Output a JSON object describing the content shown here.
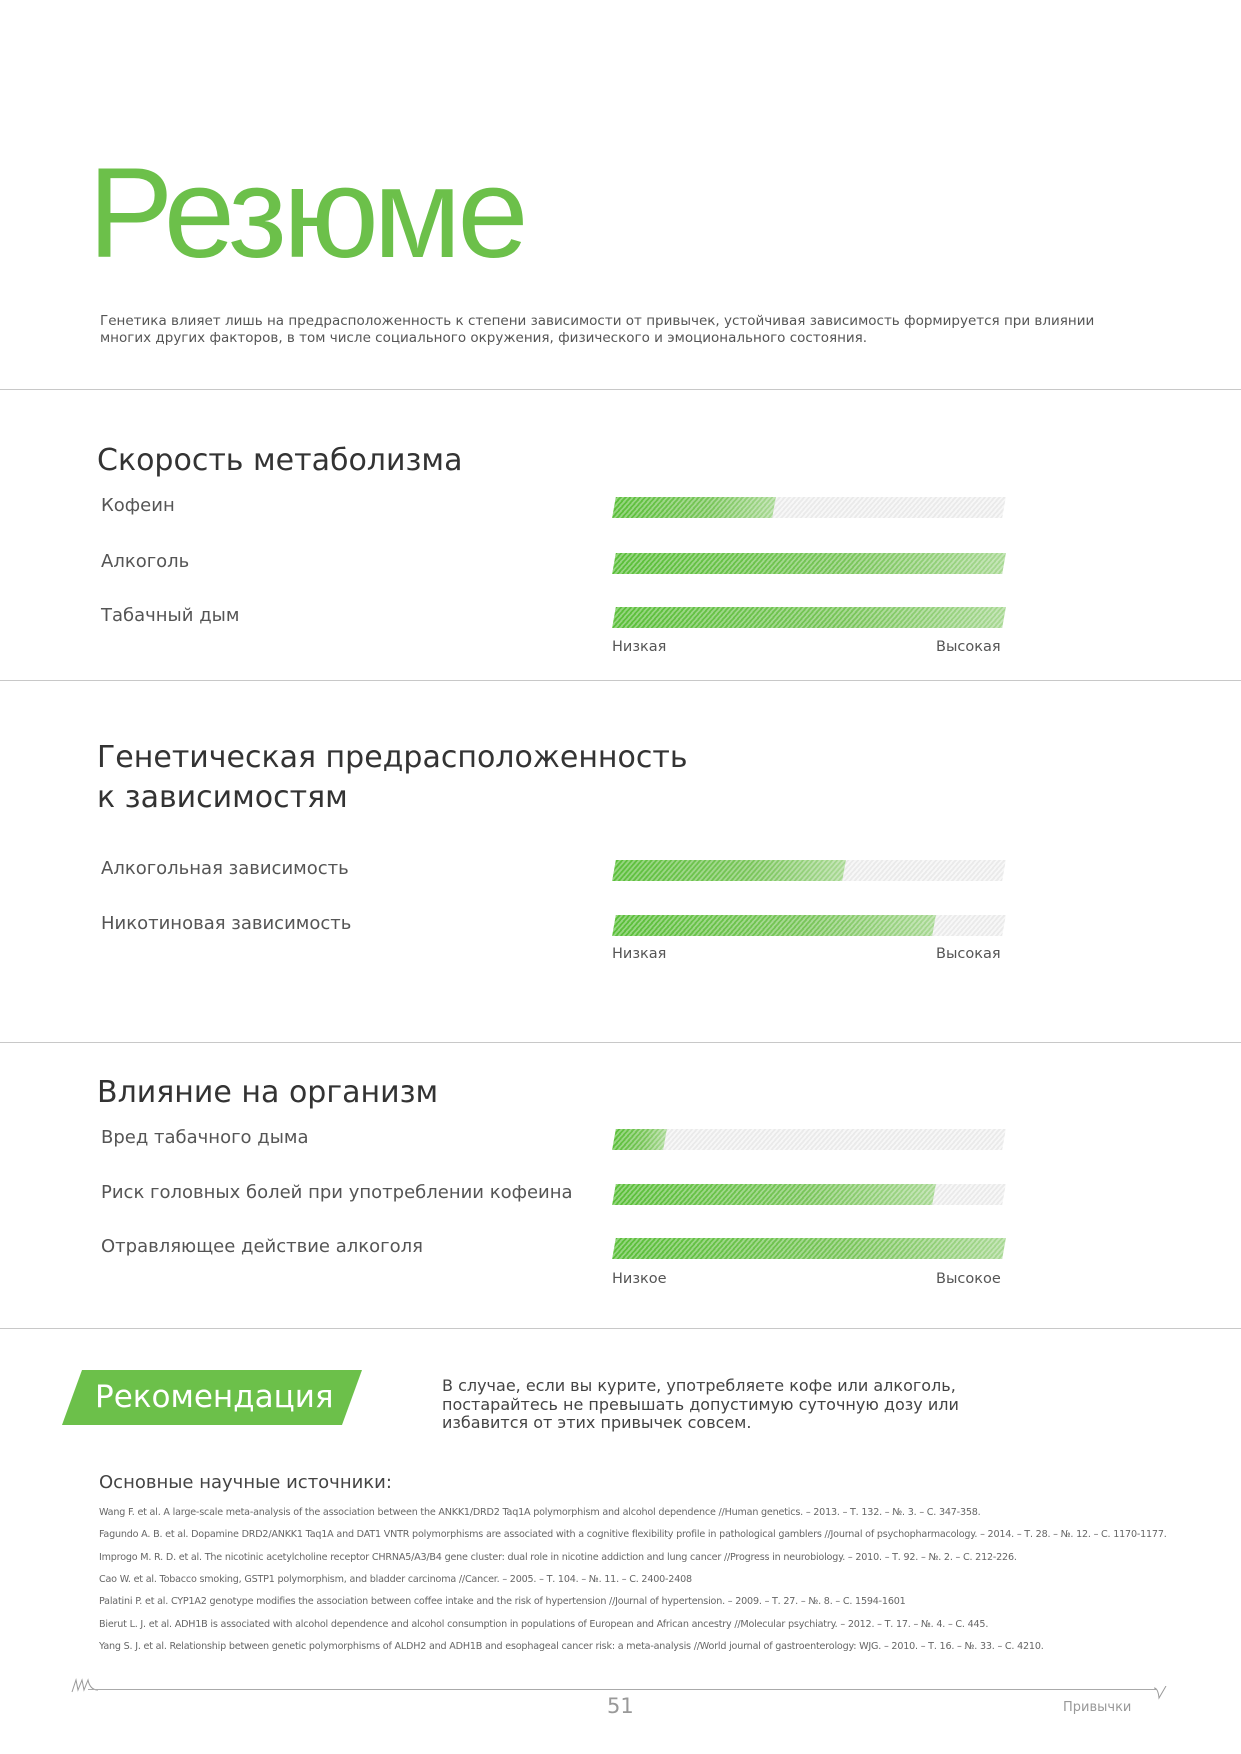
{
  "title": "Резюме",
  "intro": "Генетика влияет лишь на предрасположенность к степени зависимости от привычек, устойчивая зависимость формируется при влиянии многих других факторов, в том числе социального окружения, физического и эмоционального состояния.",
  "colors": {
    "accent": "#6cc04a",
    "track": "#eeeeee"
  },
  "sections": [
    {
      "heading": "Скорость метаболизма",
      "low": "Низкая",
      "high": "Высокая",
      "rows": [
        {
          "label": "Кофеин",
          "level": 0.41
        },
        {
          "label": "Алкоголь",
          "level": 1.0
        },
        {
          "label": "Табачный дым",
          "level": 1.0
        }
      ]
    },
    {
      "heading": "Генетическая предрасположенность",
      "heading2": "к зависимостям",
      "low": "Низкая",
      "high": "Высокая",
      "rows": [
        {
          "label": "Алкогольная зависимость",
          "level": 0.59
        },
        {
          "label": "Никотиновая зависимость",
          "level": 0.82
        }
      ]
    },
    {
      "heading": "Влияние на организм",
      "low": "Низкое",
      "high": "Высокое",
      "rows": [
        {
          "label": "Вред табачного дыма",
          "level": 0.13
        },
        {
          "label": "Риск головных болей при употреблении кофеина",
          "level": 0.82
        },
        {
          "label": "Отравляющее действие алкоголя",
          "level": 1.0
        }
      ]
    }
  ],
  "recommendation": {
    "label": "Рекомендация",
    "text": "В случае, если вы курите, употребляете кофе или алкоголь, постарайтесь не превышать допустимую суточную дозу или избавится от этих привычек совсем."
  },
  "sources": {
    "heading": "Основные научные источники:",
    "items": [
      "Wang F. et al. A large-scale meta-analysis of the association between the ANKK1/DRD2 Taq1A polymorphism and alcohol dependence //Human genetics. – 2013. – Т. 132. – №. 3. – С. 347-358.",
      "Fagundo A. B. et al. Dopamine DRD2/ANKK1 Taq1A and DAT1 VNTR polymorphisms are associated with a cognitive flexibility profile in pathological gamblers //Journal of psychopharmacology. – 2014. – Т. 28. – №. 12. – С. 1170-1177.",
      "Improgo M. R. D. et al. The nicotinic acetylcholine receptor CHRNA5/A3/B4 gene cluster: dual role in nicotine addiction and lung cancer //Progress in neurobiology. – 2010. – Т. 92. – №. 2. – С. 212-226.",
      "Cao W. et al. Tobacco smoking, GSTP1 polymorphism, and bladder carcinoma //Cancer. – 2005. – Т. 104. – №. 11. – С. 2400-2408",
      "Palatini P. et al. CYP1A2 genotype modifies the association between coffee intake and the risk of hypertension //Journal of hypertension. – 2009. – Т. 27. – №. 8. – С. 1594-1601",
      "Bierut L. J. et al. ADH1B is associated with alcohol dependence and alcohol consumption in populations of European and African ancestry //Molecular psychiatry. – 2012. – Т. 17. – №. 4. – С. 445.",
      "Yang S. J. et al. Relationship between genetic polymorphisms of ALDH2 and ADH1B and esophageal cancer risk: a meta-analysis //World journal of gastroenterology: WJG. – 2010. – Т. 16. – №. 33. – С. 4210."
    ]
  },
  "footer": {
    "page": "51",
    "section": "Привычки"
  }
}
